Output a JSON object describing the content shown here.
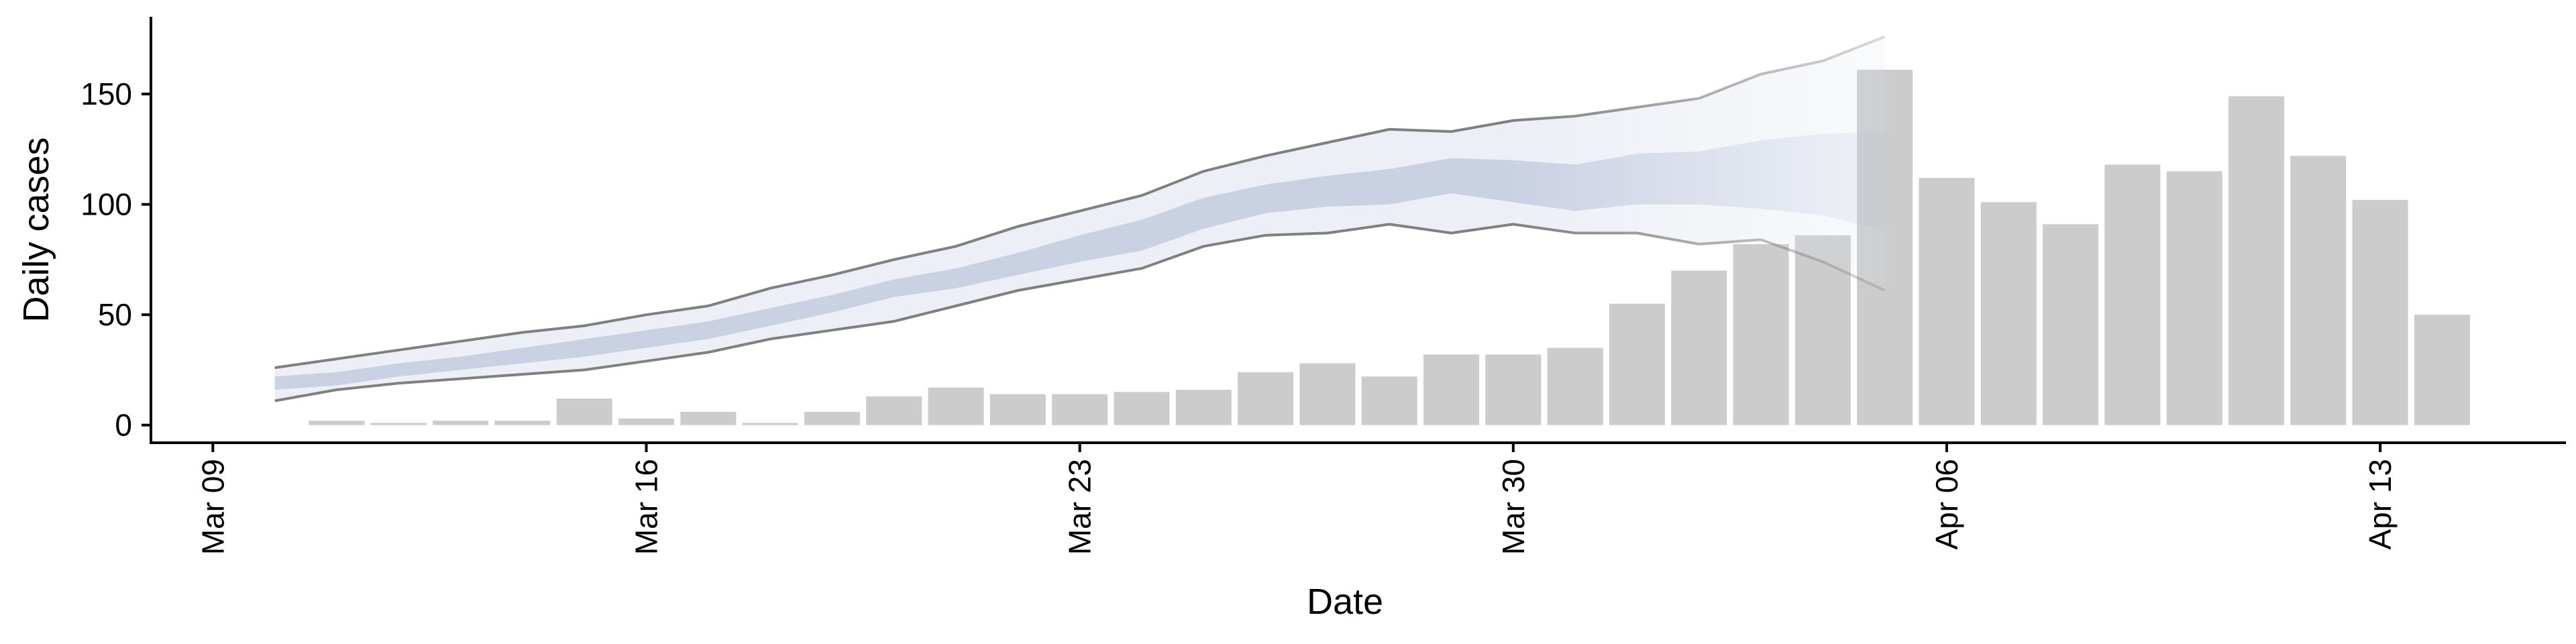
{
  "chart_data": {
    "type": "bar",
    "xlabel": "Date",
    "ylabel": "Daily cases",
    "ylim": [
      -8,
      185
    ],
    "y_ticks": [
      0,
      50,
      100,
      150
    ],
    "x_ticks": [
      {
        "date": "2020-03-09",
        "label": "Mar 09"
      },
      {
        "date": "2020-03-16",
        "label": "Mar 16"
      },
      {
        "date": "2020-03-23",
        "label": "Mar 23"
      },
      {
        "date": "2020-03-30",
        "label": "Mar 30"
      },
      {
        "date": "2020-04-06",
        "label": "Apr 06"
      },
      {
        "date": "2020-04-13",
        "label": "Apr 13"
      }
    ],
    "x_range": [
      "2020-03-08",
      "2020-04-16"
    ],
    "grid": false,
    "legend": "none",
    "colors": {
      "bars": "#cccccc",
      "outer_band": "#dde1ec",
      "inner_band": "#c2c9de",
      "outline": "#808080",
      "axis": "#000000"
    },
    "bars": {
      "dates": [
        "2020-03-11",
        "2020-03-12",
        "2020-03-13",
        "2020-03-14",
        "2020-03-15",
        "2020-03-16",
        "2020-03-17",
        "2020-03-18",
        "2020-03-19",
        "2020-03-20",
        "2020-03-21",
        "2020-03-22",
        "2020-03-23",
        "2020-03-24",
        "2020-03-25",
        "2020-03-26",
        "2020-03-27",
        "2020-03-28",
        "2020-03-29",
        "2020-03-30",
        "2020-03-31",
        "2020-04-01",
        "2020-04-02",
        "2020-04-03",
        "2020-04-04",
        "2020-04-05",
        "2020-04-06",
        "2020-04-07",
        "2020-04-08",
        "2020-04-09",
        "2020-04-10",
        "2020-04-11",
        "2020-04-12",
        "2020-04-13",
        "2020-04-14"
      ],
      "values": [
        2,
        1,
        2,
        2,
        12,
        3,
        6,
        1,
        6,
        13,
        17,
        14,
        14,
        15,
        16,
        24,
        28,
        22,
        32,
        32,
        35,
        55,
        70,
        82,
        86,
        161,
        112,
        101,
        91,
        118,
        115,
        149,
        122,
        102,
        50
      ]
    },
    "estimate": {
      "dates": [
        "2020-03-10",
        "2020-03-11",
        "2020-03-12",
        "2020-03-13",
        "2020-03-14",
        "2020-03-15",
        "2020-03-16",
        "2020-03-17",
        "2020-03-18",
        "2020-03-19",
        "2020-03-20",
        "2020-03-21",
        "2020-03-22",
        "2020-03-23",
        "2020-03-24",
        "2020-03-25",
        "2020-03-26",
        "2020-03-27",
        "2020-03-28",
        "2020-03-29",
        "2020-03-30",
        "2020-03-31",
        "2020-04-01",
        "2020-04-02",
        "2020-04-03",
        "2020-04-04",
        "2020-04-05"
      ],
      "lower90": [
        11,
        16,
        19,
        21,
        23,
        25,
        29,
        33,
        39,
        43,
        47,
        54,
        61,
        66,
        71,
        81,
        86,
        87,
        91,
        87,
        91,
        87,
        87,
        82,
        84,
        74,
        61
      ],
      "upper90": [
        26,
        30,
        34,
        38,
        42,
        45,
        50,
        54,
        62,
        68,
        75,
        81,
        90,
        97,
        104,
        115,
        122,
        128,
        134,
        133,
        138,
        140,
        144,
        148,
        159,
        165,
        176
      ],
      "lower50": [
        16,
        18,
        22,
        25,
        28,
        31,
        35,
        39,
        45,
        51,
        58,
        62,
        68,
        74,
        79,
        89,
        96,
        99,
        100,
        105,
        101,
        97,
        100,
        100,
        98,
        95,
        88
      ],
      "upper50": [
        22,
        24,
        28,
        31,
        35,
        39,
        43,
        47,
        53,
        59,
        66,
        71,
        78,
        86,
        93,
        103,
        109,
        113,
        116,
        121,
        120,
        118,
        123,
        124,
        129,
        132,
        133
      ],
      "fade_from_date": "2020-03-30"
    }
  }
}
